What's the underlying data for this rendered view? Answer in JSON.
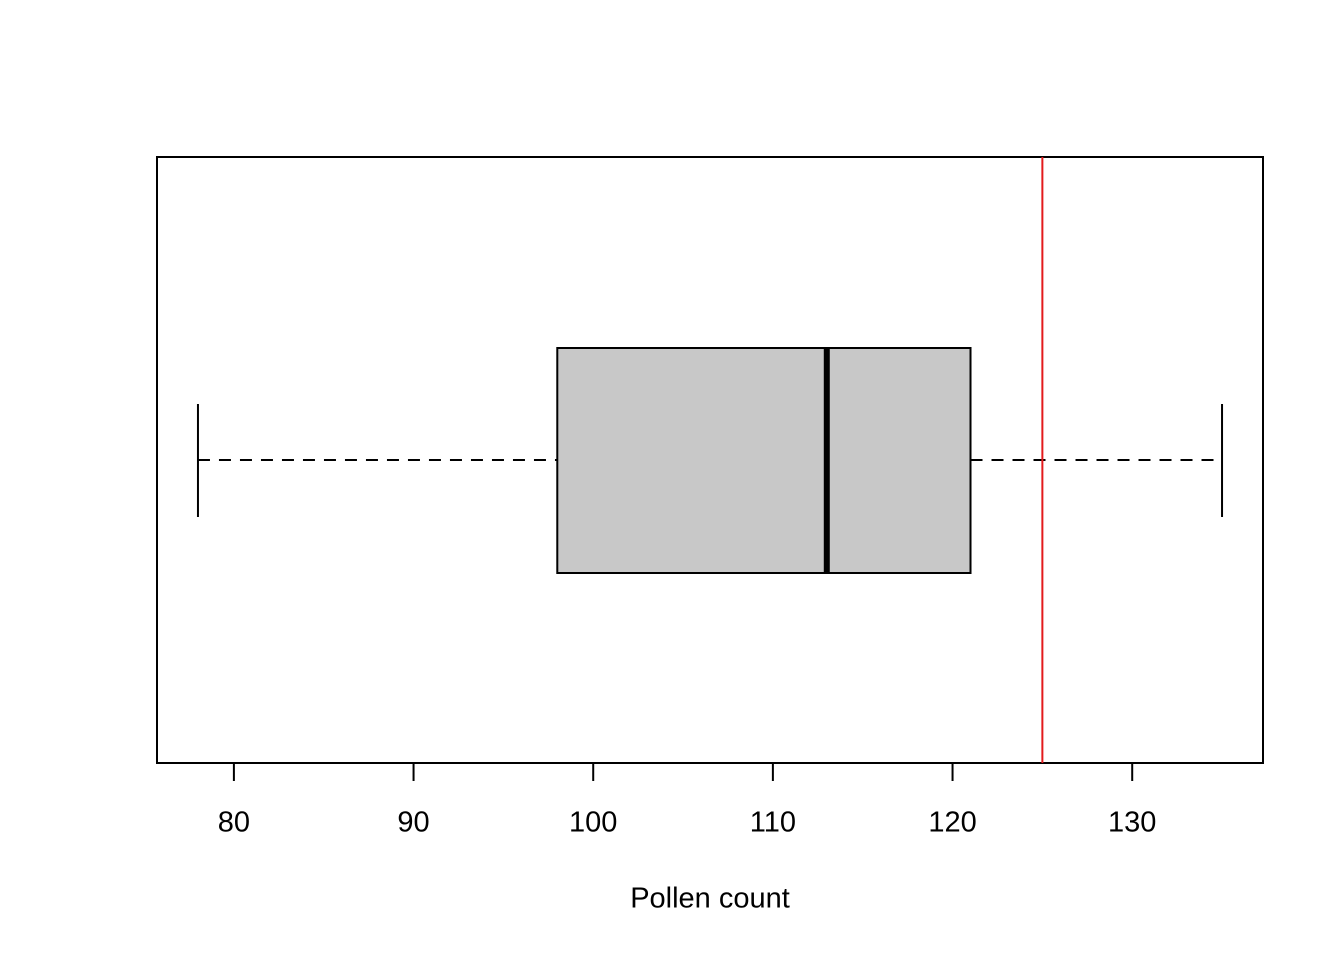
{
  "chart_data": {
    "type": "boxplot",
    "orientation": "horizontal",
    "xlabel": "Pollen count",
    "xlim": [
      75.72,
      137.28
    ],
    "xticks": [
      80,
      90,
      100,
      110,
      120,
      130
    ],
    "box": {
      "min": 78,
      "q1": 98,
      "median": 113,
      "q3": 121,
      "max": 135,
      "color": "#c8c8c8"
    },
    "reference_line": {
      "value": 125,
      "color": "#e31a1c"
    }
  }
}
